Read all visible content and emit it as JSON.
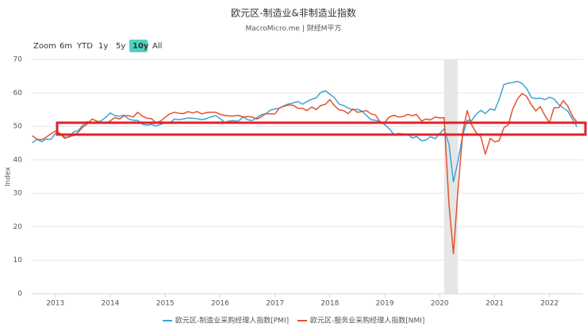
{
  "chart_data": {
    "type": "line",
    "title": "欧元区-制造业&非制造业指数",
    "subtitle": "MacroMicro.me | 财经M平方",
    "y_label": "Index",
    "range_selector": {
      "label": "Zoom",
      "buttons": [
        "6m",
        "YTD",
        "1y",
        "5y",
        "10y",
        "All"
      ],
      "active": "10y"
    },
    "x": [
      2012.58,
      2012.67,
      2012.75,
      2012.83,
      2012.92,
      2013.0,
      2013.08,
      2013.17,
      2013.25,
      2013.33,
      2013.42,
      2013.5,
      2013.58,
      2013.67,
      2013.75,
      2013.83,
      2013.92,
      2014.0,
      2014.08,
      2014.17,
      2014.25,
      2014.33,
      2014.42,
      2014.5,
      2014.58,
      2014.67,
      2014.75,
      2014.83,
      2014.92,
      2015.0,
      2015.08,
      2015.17,
      2015.25,
      2015.33,
      2015.42,
      2015.5,
      2015.58,
      2015.67,
      2015.75,
      2015.83,
      2015.92,
      2016.0,
      2016.08,
      2016.17,
      2016.25,
      2016.33,
      2016.42,
      2016.5,
      2016.58,
      2016.67,
      2016.75,
      2016.83,
      2016.92,
      2017.0,
      2017.08,
      2017.17,
      2017.25,
      2017.33,
      2017.42,
      2017.5,
      2017.58,
      2017.67,
      2017.75,
      2017.83,
      2017.92,
      2018.0,
      2018.08,
      2018.17,
      2018.25,
      2018.33,
      2018.42,
      2018.5,
      2018.58,
      2018.67,
      2018.75,
      2018.83,
      2018.92,
      2019.0,
      2019.08,
      2019.17,
      2019.25,
      2019.33,
      2019.42,
      2019.5,
      2019.58,
      2019.67,
      2019.75,
      2019.83,
      2019.92,
      2020.0,
      2020.08,
      2020.17,
      2020.25,
      2020.33,
      2020.42,
      2020.5,
      2020.58,
      2020.67,
      2020.75,
      2020.83,
      2020.92,
      2021.0,
      2021.08,
      2021.17,
      2021.25,
      2021.33,
      2021.42,
      2021.5,
      2021.58,
      2021.67,
      2021.75,
      2021.83,
      2021.92,
      2022.0,
      2022.08,
      2022.17,
      2022.25,
      2022.33,
      2022.42,
      2022.5
    ],
    "series": [
      {
        "name": "欧元区-制造业采购经理人指数[PMI]",
        "color": "#3ba4d6",
        "values": [
          45.1,
          46.1,
          45.4,
          46.2,
          46.1,
          47.9,
          47.9,
          46.8,
          46.7,
          48.3,
          48.8,
          50.3,
          51.4,
          51.1,
          51.3,
          51.6,
          52.7,
          54.0,
          53.2,
          53.0,
          53.4,
          52.2,
          51.8,
          51.8,
          50.7,
          50.3,
          50.6,
          50.1,
          50.6,
          51.0,
          51.0,
          52.2,
          52.0,
          52.2,
          52.5,
          52.4,
          52.3,
          52.0,
          52.3,
          52.8,
          53.2,
          52.3,
          51.2,
          51.6,
          51.7,
          51.5,
          52.8,
          52.0,
          51.7,
          52.6,
          53.5,
          53.7,
          54.9,
          55.2,
          55.4,
          56.2,
          56.7,
          57.0,
          57.4,
          56.6,
          57.4,
          58.1,
          58.5,
          60.1,
          60.6,
          59.6,
          58.6,
          56.6,
          56.2,
          55.5,
          54.9,
          55.1,
          54.6,
          53.2,
          52.0,
          51.8,
          51.4,
          50.5,
          49.3,
          47.5,
          47.9,
          47.7,
          47.6,
          46.5,
          47.0,
          45.7,
          45.9,
          46.9,
          46.3,
          47.9,
          49.2,
          44.5,
          33.4,
          39.4,
          47.4,
          51.8,
          51.7,
          53.7,
          54.8,
          53.8,
          55.2,
          54.8,
          57.9,
          62.5,
          62.9,
          63.1,
          63.4,
          62.8,
          61.4,
          58.6,
          58.3,
          58.4,
          58.0,
          58.7,
          58.2,
          56.5,
          55.5,
          54.6,
          52.1,
          49.8
        ]
      },
      {
        "name": "欧元区-服务业采购经理人指数[NMI]",
        "color": "#e0532f",
        "values": [
          47.2,
          46.1,
          46.0,
          46.7,
          47.8,
          48.6,
          47.9,
          46.4,
          47.0,
          47.2,
          48.3,
          49.8,
          50.7,
          52.2,
          51.6,
          51.2,
          51.0,
          51.6,
          52.6,
          52.2,
          53.1,
          53.2,
          52.8,
          54.2,
          53.1,
          52.4,
          52.3,
          51.1,
          51.6,
          52.7,
          53.7,
          54.2,
          53.9,
          53.8,
          54.4,
          54.0,
          54.4,
          53.7,
          54.1,
          54.2,
          54.2,
          53.6,
          53.3,
          53.1,
          53.1,
          53.3,
          52.8,
          52.9,
          52.8,
          52.2,
          52.8,
          53.8,
          53.7,
          53.7,
          55.5,
          56.0,
          56.4,
          56.3,
          55.4,
          55.4,
          54.7,
          55.8,
          55.0,
          56.2,
          56.6,
          58.0,
          56.2,
          54.9,
          54.7,
          53.8,
          55.2,
          54.2,
          54.4,
          54.7,
          53.7,
          53.4,
          51.2,
          51.2,
          52.8,
          53.3,
          52.8,
          52.9,
          53.6,
          53.2,
          53.5,
          51.6,
          52.2,
          51.9,
          52.8,
          52.5,
          52.6,
          26.4,
          12.0,
          30.5,
          48.3,
          54.7,
          50.5,
          48.0,
          46.9,
          41.7,
          46.4,
          45.4,
          45.7,
          49.6,
          50.5,
          55.2,
          58.3,
          59.8,
          59.0,
          56.4,
          54.6,
          55.9,
          53.1,
          51.1,
          55.5,
          55.6,
          57.7,
          56.1,
          53.0,
          51.2
        ]
      }
    ],
    "shaded_range": [
      2020.08,
      2020.33
    ],
    "xlim": [
      2012.57,
      2022.61
    ],
    "xticks": [
      2013,
      2014,
      2015,
      2016,
      2017,
      2018,
      2019,
      2020,
      2021,
      2022
    ],
    "ylim": [
      0,
      70
    ],
    "yticks": [
      0,
      10,
      20,
      30,
      40,
      50,
      60,
      70
    ],
    "grid": true
  }
}
